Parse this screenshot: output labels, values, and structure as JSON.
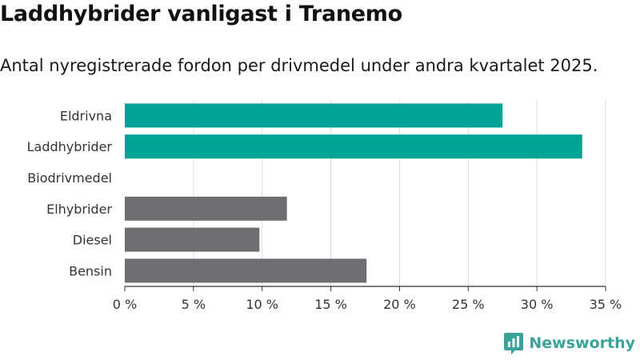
{
  "title": "Laddhybrider vanligast i Tranemo",
  "subtitle": "Antal nyregistrerade fordon per drivmedel under andra kvartalet 2025.",
  "brand": {
    "name": "Newsworthy",
    "icon": "bar-chart-badge-icon",
    "color": "#3aa39a"
  },
  "colors": {
    "highlight": "#00a396",
    "default": "#6e6d72",
    "grid": "#dddddd",
    "axis": "#333333"
  },
  "chart_data": {
    "type": "bar",
    "orientation": "horizontal",
    "categories": [
      "Eldrivna",
      "Laddhybrider",
      "Biodrivmedel",
      "Elhybrider",
      "Diesel",
      "Bensin"
    ],
    "values": [
      27.5,
      33.3,
      0,
      11.8,
      9.8,
      17.6
    ],
    "highlighted": [
      true,
      true,
      false,
      false,
      false,
      false
    ],
    "unit": "%",
    "xlim": [
      0,
      35
    ],
    "xticks": [
      0,
      5,
      10,
      15,
      20,
      25,
      30,
      35
    ],
    "tick_labels": [
      "0 %",
      "5 %",
      "10 %",
      "15 %",
      "20 %",
      "25 %",
      "30 %",
      "35 %"
    ],
    "grid": true,
    "title": "Laddhybrider vanligast i Tranemo",
    "subtitle": "Antal nyregistrerade fordon per drivmedel under andra kvartalet 2025."
  }
}
